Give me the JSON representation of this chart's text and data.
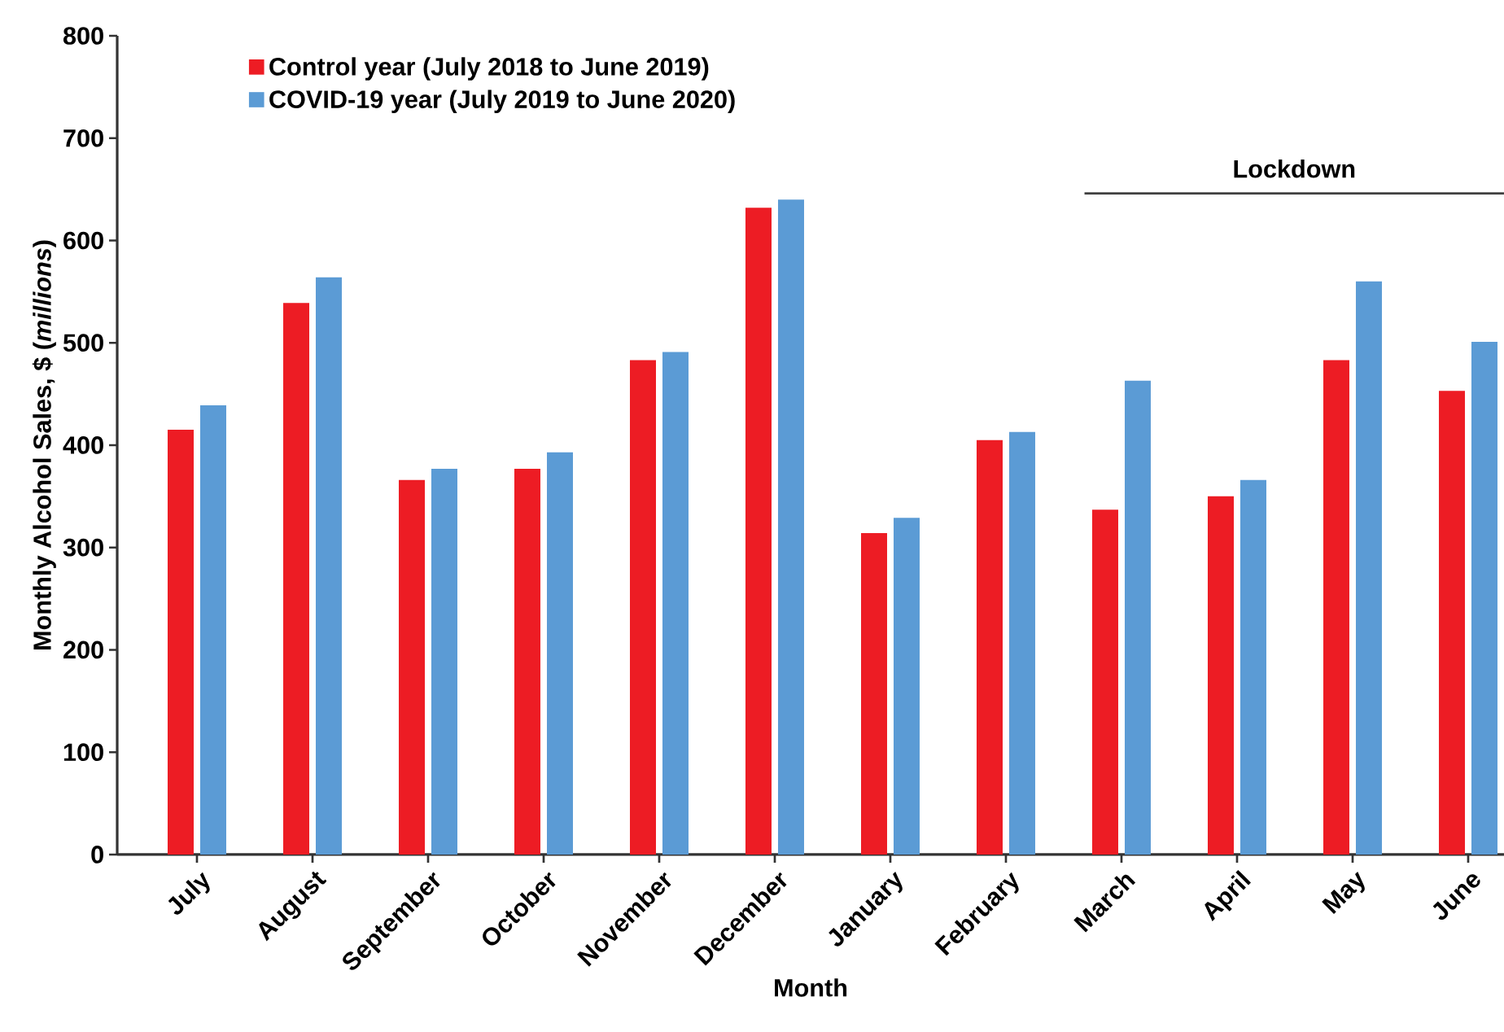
{
  "chart_data": {
    "type": "bar",
    "xlabel": "Month",
    "ylabel": "Monthly Alcohol Sales, $ (*millions*)",
    "categories": [
      "July",
      "August",
      "September",
      "October",
      "November",
      "December",
      "January",
      "February",
      "March",
      "April",
      "May",
      "June"
    ],
    "series": [
      {
        "name": "Control year (July 2018 to June 2019)",
        "color": "#ed1c24",
        "values": [
          415,
          539,
          366,
          377,
          483,
          632,
          314,
          405,
          337,
          350,
          483,
          453
        ]
      },
      {
        "name": "COVID-19 year (July 2019 to June 2020)",
        "color": "#5b9bd5",
        "values": [
          439,
          564,
          377,
          393,
          491,
          640,
          329,
          413,
          463,
          366,
          560,
          501
        ]
      }
    ],
    "ylim": [
      0,
      800
    ],
    "yticks": [
      0,
      100,
      200,
      300,
      400,
      500,
      600,
      700,
      800
    ],
    "ref_lines": [
      {
        "axis": "y",
        "value": 646,
        "label": "Lockdown",
        "color": "#404040"
      }
    ],
    "legend": "top left",
    "grid": false
  }
}
